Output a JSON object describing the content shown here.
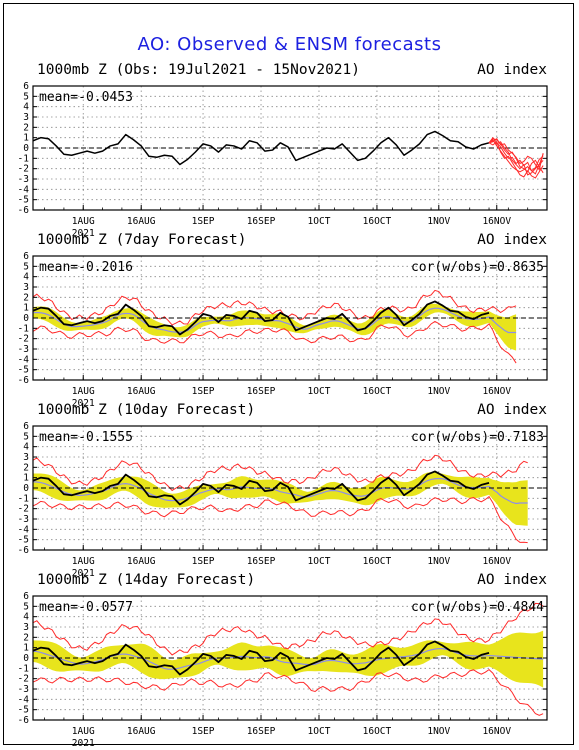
{
  "page": {
    "title": "AO: Observed & ENSM forecasts"
  },
  "colors": {
    "title": "#1d21e0",
    "observed": "#000000",
    "ensemble": "#ff2a2a",
    "spread_fill": "#e8e41c",
    "ensemble_mean": "#8e8ee8",
    "zero_line": "#000000",
    "grid": "#8a8a8a"
  },
  "chart_data": [
    {
      "type": "line",
      "title": "1000mb Z (Obs: 19Jul2021 - 15Nov2021)",
      "right_label": "AO index",
      "stat_left": "mean=-0.0453",
      "stat_right": "",
      "ylim": [
        -6,
        6
      ],
      "yticks": [
        "6",
        "5",
        "4",
        "3",
        "2",
        "1",
        "0",
        "-1",
        "-2",
        "-3",
        "-4",
        "-5",
        "-6"
      ],
      "xticks": [
        "1AUG",
        "16AUG",
        "1SEP",
        "16SEP",
        "1OCT",
        "16OCT",
        "1NOV",
        "16NOV"
      ],
      "year_label": "2021",
      "grid": true,
      "zero_line": "dashed",
      "series": [
        {
          "role": "observed",
          "x": [
            0,
            2,
            4,
            6,
            8,
            10,
            12,
            14,
            16,
            18,
            20,
            22,
            24,
            26,
            28,
            30,
            32,
            34,
            36,
            38,
            40,
            42,
            44,
            46,
            48,
            50,
            52,
            54,
            56,
            58,
            60,
            62,
            64,
            66,
            68,
            70,
            72,
            74,
            76,
            78,
            80,
            82,
            84,
            86,
            88,
            90,
            92,
            94,
            96,
            98,
            100,
            102,
            104,
            106,
            108,
            110,
            112,
            114,
            116,
            118
          ],
          "values": [
            0.7,
            1.0,
            0.9,
            0.2,
            -0.6,
            -0.7,
            -0.5,
            -0.3,
            -0.5,
            -0.3,
            0.2,
            0.4,
            1.3,
            0.8,
            0.2,
            -0.8,
            -0.9,
            -0.7,
            -0.8,
            -1.6,
            -1.1,
            -0.4,
            0.4,
            0.2,
            -0.4,
            0.3,
            0.2,
            -0.1,
            0.7,
            0.5,
            -0.3,
            -0.2,
            0.5,
            0.1,
            -1.2,
            -0.9,
            -0.6,
            -0.3,
            0.0,
            -0.1,
            0.4,
            -0.4,
            -1.2,
            -1.0,
            -0.3,
            0.5,
            1.0,
            0.3,
            -0.7,
            -0.2,
            0.4,
            1.3,
            1.6,
            1.2,
            0.7,
            0.6,
            0.1,
            -0.1,
            0.3,
            0.5
          ]
        },
        {
          "role": "ensemble",
          "x": [
            118,
            119,
            120,
            121,
            122,
            123,
            124,
            125,
            126,
            127,
            128,
            129,
            130,
            131,
            132
          ],
          "members": [
            [
              0.5,
              0.8,
              0.2,
              -0.3,
              -0.8,
              -1.3,
              -1.8,
              -2.1,
              -2.3,
              -2.1,
              -1.8,
              -2.2,
              -2.5,
              -1.6,
              -1.2
            ],
            [
              0.5,
              0.6,
              0.9,
              0.3,
              0.4,
              -0.2,
              -0.5,
              -0.9,
              -1.5,
              -1.3,
              -0.8,
              -1.0,
              -1.6,
              -2.1,
              -0.5
            ],
            [
              0.5,
              0.9,
              0.8,
              0.4,
              -0.2,
              -0.6,
              -0.4,
              -1.0,
              -1.8,
              -2.0,
              -2.3,
              -1.5,
              -1.2,
              -1.8,
              -2.4
            ],
            [
              0.5,
              0.3,
              0.6,
              -0.4,
              -1.0,
              -0.8,
              -1.4,
              -2.0,
              -2.6,
              -2.8,
              -2.2,
              -2.7,
              -2.9,
              -2.3,
              -1.7
            ],
            [
              0.5,
              1.0,
              0.5,
              0.1,
              -0.5,
              -1.0,
              -0.9,
              -1.5,
              -1.2,
              -1.7,
              -1.4,
              -2.2,
              -1.9,
              -1.1,
              -0.8
            ],
            [
              0.5,
              0.7,
              0.4,
              0.6,
              0.0,
              -0.4,
              -1.2,
              -1.6,
              -2.0,
              -1.6,
              -2.6,
              -2.4,
              -2.0,
              -1.6,
              -0.6
            ]
          ]
        }
      ]
    },
    {
      "type": "line",
      "title": "1000mb Z (7day Forecast)",
      "right_label": "AO index",
      "stat_left": "mean=-0.2016",
      "stat_right": "cor(w/obs)=0.8635",
      "ylim": [
        -6,
        6
      ],
      "yticks": [
        "6",
        "5",
        "4",
        "3",
        "2",
        "1",
        "0",
        "-1",
        "-2",
        "-3",
        "-4",
        "-5",
        "-6"
      ],
      "xticks": [
        "1AUG",
        "16AUG",
        "1SEP",
        "16SEP",
        "1OCT",
        "16OCT",
        "1NOV",
        "16NOV"
      ],
      "year_label": "2021",
      "grid": true,
      "zero_line": "dashed",
      "forecast_shift": -0.3,
      "spread_halfwidth": 0.7,
      "envelope_halfwidth": 1.4,
      "forecast_end_x": 125,
      "forecast_tail": [
        -0.5,
        -1.2,
        -1.8,
        -2.4,
        -2.8
      ],
      "observed_values_ref": "observed panel 1"
    },
    {
      "type": "line",
      "title": "1000mb Z (10day Forecast)",
      "right_label": "AO index",
      "stat_left": "mean=-0.1555",
      "stat_right": "cor(w/obs)=0.7183",
      "ylim": [
        -6,
        6
      ],
      "yticks": [
        "6",
        "5",
        "4",
        "3",
        "2",
        "1",
        "0",
        "-1",
        "-2",
        "-3",
        "-4",
        "-5",
        "-6"
      ],
      "xticks": [
        "1AUG",
        "16AUG",
        "1SEP",
        "16SEP",
        "1OCT",
        "16OCT",
        "1NOV",
        "16NOV"
      ],
      "year_label": "2021",
      "grid": true,
      "zero_line": "dashed",
      "forecast_shift": -0.2,
      "spread_halfwidth": 1.0,
      "envelope_halfwidth": 1.9,
      "forecast_end_x": 128,
      "forecast_tail": [
        -0.3,
        -0.8,
        -1.5,
        -2.0,
        -2.4,
        -2.8,
        -3.0,
        -2.9
      ]
    },
    {
      "type": "line",
      "title": "1000mb Z (14day Forecast)",
      "right_label": "AO index",
      "stat_left": "mean=-0.0577",
      "stat_right": "cor(w/obs)=0.4844",
      "ylim": [
        -6,
        6
      ],
      "yticks": [
        "6",
        "5",
        "4",
        "3",
        "2",
        "1",
        "0",
        "-1",
        "-2",
        "-3",
        "-4",
        "-5",
        "-6"
      ],
      "xticks": [
        "1AUG",
        "16AUG",
        "1SEP",
        "16SEP",
        "1OCT",
        "16OCT",
        "1NOV",
        "16NOV"
      ],
      "year_label": "2021",
      "grid": true,
      "zero_line": "dashed",
      "forecast_shift": -0.1,
      "spread_halfwidth": 1.3,
      "envelope_halfwidth": 2.5,
      "forecast_end_x": 132,
      "forecast_tail": []
    }
  ]
}
